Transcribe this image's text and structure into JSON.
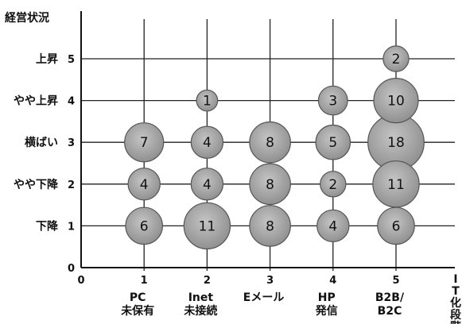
{
  "chart_data": {
    "type": "scatter",
    "bubble": true,
    "y_title": "経営状況",
    "x_title": "IT化段階",
    "x_ticks": [
      0,
      1,
      2,
      3,
      4,
      5
    ],
    "y_ticks": [
      0,
      1,
      2,
      3,
      4,
      5
    ],
    "xlim": [
      0,
      5.9
    ],
    "ylim": [
      0,
      6.1
    ],
    "grid": true,
    "y_category_labels": [
      {
        "y": 5,
        "label": "上昇"
      },
      {
        "y": 4,
        "label": "やや上昇"
      },
      {
        "y": 3,
        "label": "横ばい"
      },
      {
        "y": 2,
        "label": "やや下降"
      },
      {
        "y": 1,
        "label": "下降"
      }
    ],
    "x_category_labels": [
      {
        "x": 1,
        "label": [
          "PC",
          "未保有"
        ]
      },
      {
        "x": 2,
        "label": [
          "Inet",
          "未接続"
        ]
      },
      {
        "x": 3,
        "label": [
          "Eメール"
        ]
      },
      {
        "x": 4,
        "label": [
          "HP",
          "発信"
        ]
      },
      {
        "x": 5,
        "label": [
          "B2B/",
          "B2C"
        ]
      }
    ],
    "points": [
      {
        "x": 5,
        "y": 5,
        "size": 2
      },
      {
        "x": 2,
        "y": 4,
        "size": 1
      },
      {
        "x": 4,
        "y": 4,
        "size": 3
      },
      {
        "x": 5,
        "y": 4,
        "size": 10
      },
      {
        "x": 1,
        "y": 3,
        "size": 7
      },
      {
        "x": 2,
        "y": 3,
        "size": 4
      },
      {
        "x": 3,
        "y": 3,
        "size": 8
      },
      {
        "x": 4,
        "y": 3,
        "size": 5
      },
      {
        "x": 5,
        "y": 3,
        "size": 18
      },
      {
        "x": 1,
        "y": 2,
        "size": 4
      },
      {
        "x": 2,
        "y": 2,
        "size": 4
      },
      {
        "x": 3,
        "y": 2,
        "size": 8
      },
      {
        "x": 4,
        "y": 2,
        "size": 2
      },
      {
        "x": 5,
        "y": 2,
        "size": 11
      },
      {
        "x": 1,
        "y": 1,
        "size": 6
      },
      {
        "x": 2,
        "y": 1,
        "size": 11
      },
      {
        "x": 3,
        "y": 1,
        "size": 8
      },
      {
        "x": 4,
        "y": 1,
        "size": 4
      },
      {
        "x": 5,
        "y": 1,
        "size": 6
      }
    ],
    "colors": {
      "bubble_fill": "#9c9c9c",
      "bubble_stroke": "#555555",
      "line": "#111111"
    }
  }
}
